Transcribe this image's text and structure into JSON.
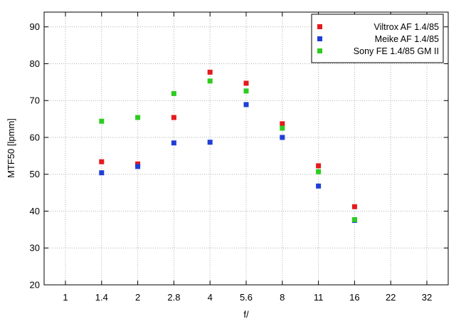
{
  "chart_data": {
    "type": "scatter",
    "xlabel": "f/",
    "ylabel": "MTF50 [lpmm]",
    "x_categories": [
      "1",
      "1.4",
      "2",
      "2.8",
      "4",
      "5.6",
      "8",
      "11",
      "16",
      "22",
      "32"
    ],
    "ylim": [
      20,
      94
    ],
    "yticks": [
      20,
      30,
      40,
      50,
      60,
      70,
      80,
      90
    ],
    "grid": true,
    "legend_position": "top-right",
    "series": [
      {
        "name": "Viltrox AF 1.4/85",
        "color": "#e41a1c",
        "points": [
          {
            "x": "1.4",
            "y": 53.4
          },
          {
            "x": "2",
            "y": 52.8
          },
          {
            "x": "2.8",
            "y": 65.4
          },
          {
            "x": "4",
            "y": 77.7
          },
          {
            "x": "5.6",
            "y": 74.7
          },
          {
            "x": "8",
            "y": 63.7
          },
          {
            "x": "11",
            "y": 52.3
          },
          {
            "x": "16",
            "y": 41.2
          }
        ]
      },
      {
        "name": "Meike AF 1.4/85",
        "color": "#1f3fd6",
        "points": [
          {
            "x": "1.4",
            "y": 50.4
          },
          {
            "x": "2",
            "y": 52.1
          },
          {
            "x": "2.8",
            "y": 58.5
          },
          {
            "x": "4",
            "y": 58.7
          },
          {
            "x": "5.6",
            "y": 68.9
          },
          {
            "x": "8",
            "y": 60.0
          },
          {
            "x": "11",
            "y": 46.8
          },
          {
            "x": "16",
            "y": 37.5
          }
        ]
      },
      {
        "name": "Sony FE 1.4/85 GM II",
        "color": "#2ecc1f",
        "points": [
          {
            "x": "1.4",
            "y": 64.4
          },
          {
            "x": "2",
            "y": 65.4
          },
          {
            "x": "2.8",
            "y": 71.9
          },
          {
            "x": "4",
            "y": 75.3
          },
          {
            "x": "5.6",
            "y": 72.6
          },
          {
            "x": "8",
            "y": 62.5
          },
          {
            "x": "11",
            "y": 50.7
          },
          {
            "x": "16",
            "y": 37.7
          }
        ]
      }
    ]
  }
}
